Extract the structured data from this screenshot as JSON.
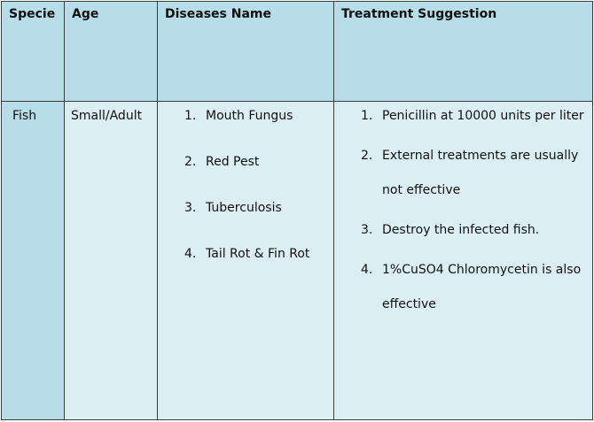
{
  "headers": {
    "specie": "Specie",
    "age": "Age",
    "diseases": "Diseases Name",
    "treatment": "Treatment Suggestion"
  },
  "row": {
    "specie": "Fish",
    "age": "Small/Adult",
    "diseases": [
      {
        "num": "1.",
        "text": "Mouth Fungus"
      },
      {
        "num": "2.",
        "text": "Red Pest"
      },
      {
        "num": "3.",
        "text": "Tuberculosis"
      },
      {
        "num": "4.",
        "text": "Tail Rot & Fin Rot"
      }
    ],
    "treatments": [
      {
        "num": "1.",
        "text": "Penicillin at 10000  units per liter"
      },
      {
        "num": "2.",
        "text": "External treatments are usually not effective"
      },
      {
        "num": "3.",
        "text": "Destroy the infected fish."
      },
      {
        "num": "4.",
        "text": "1%CuSO4 Chloromycetin is also effective"
      }
    ]
  },
  "colors": {
    "header_bg": "#b7dde8",
    "specie_cell_bg": "#b7dde8",
    "body_cell_bg": "#daeef3",
    "border": "#3c3c3c"
  }
}
